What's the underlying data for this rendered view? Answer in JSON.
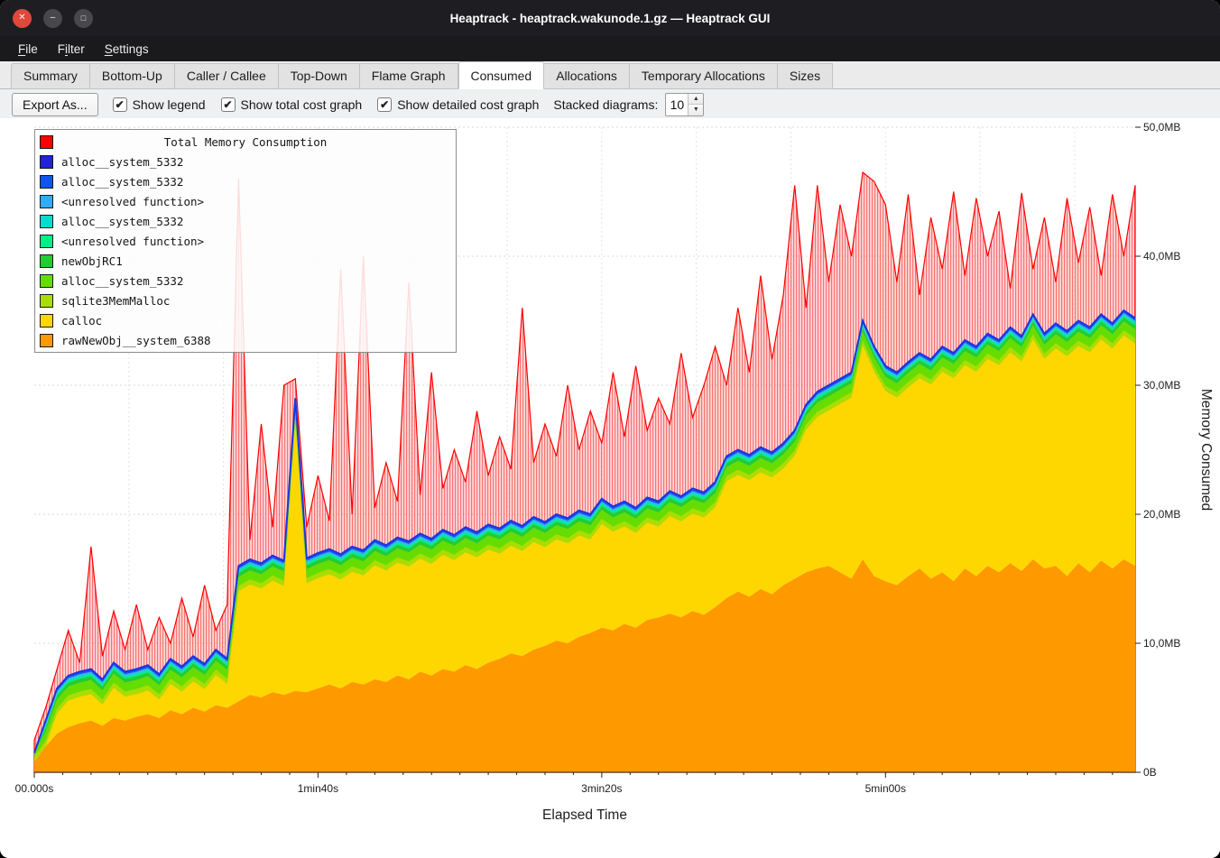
{
  "window": {
    "title": "Heaptrack - heaptrack.wakunode.1.gz — Heaptrack GUI",
    "controls": {
      "close_glyph": "✕",
      "minimize_glyph": "–",
      "maximize_glyph": "□"
    }
  },
  "menu": {
    "items": [
      {
        "label": "File",
        "mnemonic_index": 0
      },
      {
        "label": "Filter",
        "mnemonic_index": 1
      },
      {
        "label": "Settings",
        "mnemonic_index": 0
      }
    ]
  },
  "tabs": {
    "items": [
      "Summary",
      "Bottom-Up",
      "Caller / Callee",
      "Top-Down",
      "Flame Graph",
      "Consumed",
      "Allocations",
      "Temporary Allocations",
      "Sizes"
    ],
    "active": "Consumed"
  },
  "toolbar": {
    "export_label": "Export As...",
    "checkboxes": [
      {
        "label": "Show legend",
        "checked": true
      },
      {
        "label": "Show total cost graph",
        "checked": true
      },
      {
        "label": "Show detailed cost graph",
        "checked": true
      }
    ],
    "stacked_label": "Stacked diagrams:",
    "stacked_value": "10"
  },
  "legend": {
    "title": "Total Memory Consumption",
    "title_color": "#ff0000",
    "entries": [
      {
        "label": "alloc__system_5332",
        "color": "#2222d6"
      },
      {
        "label": "alloc__system_5332",
        "color": "#1155ee"
      },
      {
        "label": "<unresolved function>",
        "color": "#33aaff"
      },
      {
        "label": "alloc__system_5332",
        "color": "#00ddcc"
      },
      {
        "label": "<unresolved function>",
        "color": "#00ee88"
      },
      {
        "label": "newObjRC1",
        "color": "#22cc33"
      },
      {
        "label": "alloc__system_5332",
        "color": "#66dd00"
      },
      {
        "label": "sqlite3MemMalloc",
        "color": "#aadd00"
      },
      {
        "label": "calloc",
        "color": "#ffd700"
      },
      {
        "label": "rawNewObj__system_6388",
        "color": "#ff9900"
      }
    ]
  },
  "chart_data": {
    "type": "area",
    "title": "Total Memory Consumption",
    "xlabel": "Elapsed Time",
    "ylabel": "Memory Consumed",
    "xlim": [
      0,
      388
    ],
    "ylim": [
      0,
      50
    ],
    "x_ticks": [
      {
        "t": 0,
        "label": "00.000s"
      },
      {
        "t": 100,
        "label": "1min40s"
      },
      {
        "t": 200,
        "label": "3min20s"
      },
      {
        "t": 300,
        "label": "5min00s"
      }
    ],
    "y_ticks": [
      {
        "v": 0,
        "label": "0B"
      },
      {
        "v": 10,
        "label": "10,0MB"
      },
      {
        "v": 20,
        "label": "20,0MB"
      },
      {
        "v": 30,
        "label": "30,0MB"
      },
      {
        "v": 40,
        "label": "40,0MB"
      },
      {
        "v": 50,
        "label": "50,0MB"
      }
    ],
    "top_line_color": "#1a35e0",
    "x": [
      0,
      4,
      8,
      12,
      16,
      20,
      24,
      28,
      32,
      36,
      40,
      44,
      48,
      52,
      56,
      60,
      64,
      68,
      72,
      76,
      80,
      84,
      88,
      92,
      96,
      100,
      104,
      108,
      112,
      116,
      120,
      124,
      128,
      132,
      136,
      140,
      144,
      148,
      152,
      156,
      160,
      164,
      168,
      172,
      176,
      180,
      184,
      188,
      192,
      196,
      200,
      204,
      208,
      212,
      216,
      220,
      224,
      228,
      232,
      236,
      240,
      244,
      248,
      252,
      256,
      260,
      264,
      268,
      272,
      276,
      280,
      284,
      288,
      292,
      296,
      300,
      304,
      308,
      312,
      316,
      320,
      324,
      328,
      332,
      336,
      340,
      344,
      348,
      352,
      356,
      360,
      364,
      368,
      372,
      376,
      380,
      384,
      388
    ],
    "total": {
      "name": "Total Memory Consumption",
      "color": "#ff0000",
      "values": [
        2.5,
        5,
        8,
        11,
        8.5,
        17.5,
        9,
        12.5,
        9.5,
        13,
        9.5,
        12,
        10,
        13.5,
        10.5,
        14.5,
        11,
        13,
        46,
        18,
        27,
        19,
        30,
        30.5,
        19,
        23,
        19.5,
        39,
        20,
        40,
        20.5,
        24,
        21,
        38,
        21.5,
        31,
        22,
        25,
        22.5,
        28,
        23,
        26,
        23.5,
        36,
        24,
        27,
        24.5,
        30,
        25,
        28,
        25.5,
        31,
        26,
        31.5,
        26.5,
        29,
        27,
        32.5,
        27.5,
        30,
        33,
        30,
        36,
        31,
        38.5,
        32,
        37,
        45.5,
        36,
        45.5,
        38,
        44,
        40,
        46.5,
        45.8,
        44,
        38,
        44.8,
        37,
        43,
        39,
        45,
        38.5,
        44.5,
        40,
        43.5,
        37.5,
        44.9,
        39,
        43,
        38,
        44.5,
        39.5,
        43.8,
        38.5,
        44.8,
        40,
        45.5
      ]
    },
    "stack_top": [
      1.5,
      4,
      6.5,
      7.5,
      7.8,
      8,
      7.2,
      8.5,
      7.8,
      8,
      8.3,
      7.6,
      8.8,
      8.2,
      9,
      8.4,
      9.5,
      8.8,
      16,
      16.5,
      16.2,
      16.8,
      16.4,
      29,
      16.6,
      17,
      17.3,
      16.9,
      17.5,
      17.2,
      18,
      17.6,
      18.2,
      17.9,
      18.5,
      18.1,
      18.8,
      18.4,
      19,
      18.6,
      19.2,
      18.9,
      19.5,
      19.1,
      19.8,
      19.4,
      20,
      19.7,
      20.3,
      20,
      21.2,
      20.6,
      21,
      20.5,
      21.3,
      21,
      21.8,
      21.4,
      22,
      21.7,
      22.5,
      24.5,
      25,
      24.6,
      25.2,
      24.8,
      25.5,
      26.5,
      28.5,
      29.5,
      30,
      30.5,
      31,
      35,
      33,
      31.5,
      31,
      31.8,
      32.5,
      32,
      33,
      32.5,
      33.5,
      33,
      34,
      33.5,
      34.5,
      33.8,
      35.5,
      34,
      34.8,
      34.2,
      35,
      34.5,
      35.5,
      34.8,
      35.8,
      35.2
    ],
    "stack": [
      {
        "name": "rawNewObj__system_6388",
        "color": "#ff9900",
        "values": [
          0.8,
          2,
          3,
          3.5,
          3.8,
          4,
          3.6,
          4.2,
          4,
          4.3,
          4.5,
          4.2,
          4.8,
          4.5,
          5,
          4.7,
          5.2,
          5,
          5.5,
          6,
          5.8,
          6.2,
          6,
          6.3,
          6.2,
          6.5,
          6.8,
          6.5,
          7,
          6.8,
          7.2,
          7,
          7.5,
          7.2,
          7.8,
          7.5,
          8,
          7.8,
          8.3,
          8,
          8.5,
          8.8,
          9.2,
          9,
          9.5,
          9.8,
          10.2,
          10,
          10.5,
          10.8,
          11.2,
          11,
          11.5,
          11.2,
          11.8,
          12,
          12.3,
          12,
          12.5,
          12.2,
          12.8,
          13.5,
          14,
          13.6,
          14.2,
          13.8,
          14.5,
          15,
          15.5,
          15.8,
          16,
          15.5,
          15,
          16.5,
          15.2,
          14.8,
          14.5,
          15.2,
          15.8,
          15,
          15.5,
          14.8,
          15.8,
          15.2,
          16,
          15.5,
          16.2,
          15.6,
          16.5,
          15.8,
          16,
          15.2,
          16.2,
          15.5,
          16.4,
          15.8,
          16.5,
          16
        ]
      },
      {
        "name": "calloc",
        "color": "#ffd700",
        "mode": "residual"
      },
      {
        "name": "sqlite3MemMalloc",
        "color": "#aadd00",
        "thickness": 0.4
      },
      {
        "name": "alloc__system_5332",
        "color": "#66dd00",
        "thickness": 0.7
      },
      {
        "name": "newObjRC1",
        "color": "#22cc33",
        "thickness": 0.3
      },
      {
        "name": "<unresolved function>",
        "color": "#00ee88",
        "thickness": 0.15
      },
      {
        "name": "alloc__system_5332",
        "color": "#00ddcc",
        "thickness": 0.1
      },
      {
        "name": "<unresolved function>",
        "color": "#33aaff",
        "thickness": 0.1
      },
      {
        "name": "alloc__system_5332",
        "color": "#1155ee",
        "thickness": 0.12
      },
      {
        "name": "alloc__system_5332",
        "color": "#2222d6",
        "thickness": 0.08
      }
    ]
  }
}
